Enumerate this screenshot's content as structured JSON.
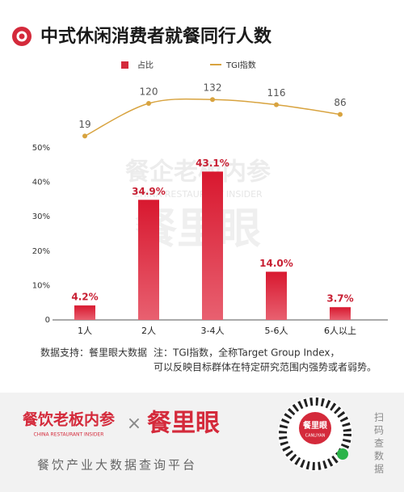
{
  "header": {
    "title": "中式休闲消费者就餐同行人数"
  },
  "watermark": {
    "name": "餐企老板内参",
    "english": "CHINA RESTAURANT INSIDER",
    "brand": "餐里眼"
  },
  "chart_data": {
    "type": "combo",
    "categories": [
      "1人",
      "2人",
      "3-4人",
      "5-6人",
      "6人以上"
    ],
    "series": [
      {
        "name": "占比",
        "type": "bar",
        "color": "#d42a3b",
        "values": [
          4.2,
          34.9,
          43.1,
          14.0,
          3.7
        ],
        "value_labels": [
          "4.2%",
          "34.9%",
          "43.1%",
          "14.0%",
          "3.7%"
        ]
      },
      {
        "name": "TGI指数",
        "type": "line",
        "axis": "y2",
        "color": "#d8a33f",
        "values": [
          19,
          120,
          132,
          116,
          86
        ]
      }
    ],
    "ylim": [
      0,
      50
    ],
    "yticks": [
      0,
      {
        "value": 10,
        "label": "10%"
      },
      {
        "value": 20,
        "label": "20%"
      },
      {
        "value": 30,
        "label": "30%"
      },
      {
        "value": 40,
        "label": "40%"
      },
      {
        "value": 50,
        "label": "50%"
      }
    ],
    "y2lim": [
      0,
      150
    ],
    "grid": false,
    "legend": "top"
  },
  "footer": {
    "source": "数据支持：餐里眼大数据",
    "note": [
      "注：TGI指数，全称Target Group Index，",
      "可以反映目标群体在特定研究范围内强势或者弱势。"
    ]
  },
  "banner": {
    "brand": "餐饮老板内参",
    "english": "CHINA RESTAURANT INSIDER",
    "times": "×",
    "partner": "餐里眼",
    "tagline": "餐饮产业大数据查询平台",
    "qr_label": "餐里眼",
    "qr_sub": "CANLIYAN",
    "scan": "扫码查数据"
  }
}
